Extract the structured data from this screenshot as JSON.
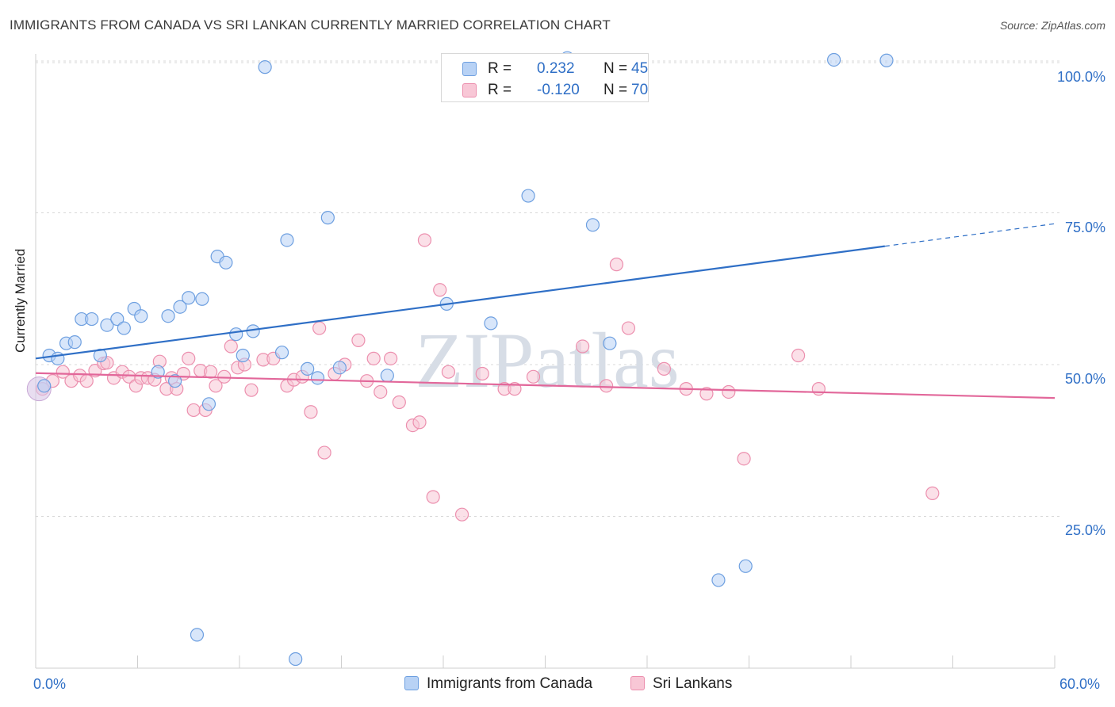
{
  "title": "IMMIGRANTS FROM CANADA VS SRI LANKAN CURRENTLY MARRIED CORRELATION CHART",
  "source": "Source: ZipAtlas.com",
  "watermark": "ZIPatlas",
  "legend": {
    "r_label": "R =",
    "n_label": "N =",
    "rows": [
      {
        "r": "0.232",
        "n": "45",
        "color": "#8fb6ea"
      },
      {
        "r": "-0.120",
        "n": "70",
        "color": "#f3a9c0"
      }
    ]
  },
  "bottom_legend": [
    "Immigrants from Canada",
    "Sri Lankans"
  ],
  "colors": {
    "blue_fill": "#b8d2f5",
    "blue_stroke": "#6d9fe0",
    "blue_line": "#2f6fc6",
    "pink_fill": "#f8c7d6",
    "pink_stroke": "#ec8fae",
    "pink_line": "#e2679a",
    "grid": "#d8d8d8",
    "tick_label": "#2f6fc6"
  },
  "chart_data": {
    "type": "scatter",
    "title": "IMMIGRANTS FROM CANADA VS SRI LANKAN CURRENTLY MARRIED CORRELATION CHART",
    "xlabel": "",
    "ylabel": "Currently Married",
    "xlim": [
      0,
      60
    ],
    "ylim": [
      0,
      103
    ],
    "x_tick_labels": [
      "0.0%",
      "60.0%"
    ],
    "y_tick_labels": [
      "25.0%",
      "50.0%",
      "75.0%",
      "100.0%"
    ],
    "y_ticks": [
      25,
      50,
      75,
      100
    ],
    "grid": true,
    "series": [
      {
        "name": "Immigrants from Canada",
        "color": "blue",
        "r": 0.232,
        "n": 45,
        "trend": {
          "x": [
            0,
            50
          ],
          "y": [
            51.0,
            69.5
          ],
          "dashed_to": [
            60,
            73.2
          ]
        },
        "points": [
          [
            0.5,
            46.5
          ],
          [
            0.8,
            51.5
          ],
          [
            1.3,
            51.0
          ],
          [
            1.8,
            53.5
          ],
          [
            2.3,
            53.7
          ],
          [
            2.7,
            57.5
          ],
          [
            3.3,
            57.5
          ],
          [
            3.8,
            51.5
          ],
          [
            4.2,
            56.5
          ],
          [
            4.8,
            57.5
          ],
          [
            5.2,
            56.0
          ],
          [
            5.8,
            59.2
          ],
          [
            6.2,
            58.0
          ],
          [
            7.2,
            48.8
          ],
          [
            7.8,
            58.0
          ],
          [
            8.2,
            47.3
          ],
          [
            8.5,
            59.5
          ],
          [
            9.0,
            61.0
          ],
          [
            9.5,
            5.5
          ],
          [
            9.8,
            60.8
          ],
          [
            10.2,
            43.5
          ],
          [
            10.7,
            67.8
          ],
          [
            11.2,
            66.8
          ],
          [
            11.8,
            55.0
          ],
          [
            12.2,
            51.5
          ],
          [
            12.8,
            55.5
          ],
          [
            13.5,
            99.0
          ],
          [
            14.5,
            52.0
          ],
          [
            14.8,
            70.5
          ],
          [
            15.3,
            1.5
          ],
          [
            16.0,
            49.3
          ],
          [
            16.6,
            47.8
          ],
          [
            17.2,
            74.2
          ],
          [
            17.9,
            49.5
          ],
          [
            20.7,
            48.2
          ],
          [
            24.2,
            60.0
          ],
          [
            26.8,
            56.8
          ],
          [
            29.0,
            77.8
          ],
          [
            31.3,
            100.5
          ],
          [
            32.8,
            73.0
          ],
          [
            33.8,
            53.5
          ],
          [
            40.2,
            14.5
          ],
          [
            41.8,
            16.8
          ],
          [
            47.0,
            100.2
          ],
          [
            50.1,
            100.1
          ]
        ]
      },
      {
        "name": "Sri Lankans",
        "color": "pink",
        "r": -0.12,
        "n": 70,
        "trend": {
          "x": [
            0,
            60
          ],
          "y": [
            48.6,
            44.5
          ]
        },
        "points": [
          [
            0.4,
            46.0
          ],
          [
            1.0,
            47.3
          ],
          [
            1.6,
            48.8
          ],
          [
            2.1,
            47.3
          ],
          [
            2.6,
            48.2
          ],
          [
            3.0,
            47.3
          ],
          [
            3.5,
            49.0
          ],
          [
            4.0,
            50.2
          ],
          [
            4.2,
            50.3
          ],
          [
            4.6,
            47.8
          ],
          [
            5.1,
            48.8
          ],
          [
            5.5,
            48.0
          ],
          [
            5.9,
            46.5
          ],
          [
            6.2,
            47.8
          ],
          [
            6.6,
            47.8
          ],
          [
            7.0,
            47.5
          ],
          [
            7.3,
            50.5
          ],
          [
            7.7,
            46.0
          ],
          [
            8.0,
            47.8
          ],
          [
            8.3,
            46.0
          ],
          [
            8.7,
            48.5
          ],
          [
            9.0,
            51.0
          ],
          [
            9.3,
            42.5
          ],
          [
            9.7,
            49.0
          ],
          [
            10.0,
            42.5
          ],
          [
            10.3,
            48.8
          ],
          [
            10.6,
            46.5
          ],
          [
            11.1,
            48.0
          ],
          [
            11.5,
            53.0
          ],
          [
            11.9,
            49.5
          ],
          [
            12.3,
            50.0
          ],
          [
            12.7,
            45.8
          ],
          [
            13.4,
            50.8
          ],
          [
            14.0,
            51.0
          ],
          [
            14.8,
            46.5
          ],
          [
            15.2,
            47.5
          ],
          [
            15.7,
            48.0
          ],
          [
            16.2,
            42.2
          ],
          [
            16.7,
            56.0
          ],
          [
            17.0,
            35.5
          ],
          [
            17.6,
            48.5
          ],
          [
            18.2,
            50.0
          ],
          [
            19.0,
            54.0
          ],
          [
            19.5,
            47.3
          ],
          [
            19.9,
            51.0
          ],
          [
            20.3,
            45.5
          ],
          [
            20.9,
            51.0
          ],
          [
            21.4,
            43.8
          ],
          [
            22.2,
            40.0
          ],
          [
            22.6,
            40.5
          ],
          [
            22.9,
            70.5
          ],
          [
            23.4,
            28.2
          ],
          [
            23.8,
            62.3
          ],
          [
            24.3,
            48.8
          ],
          [
            25.1,
            25.3
          ],
          [
            26.3,
            48.5
          ],
          [
            27.6,
            46.0
          ],
          [
            28.2,
            46.0
          ],
          [
            29.3,
            48.0
          ],
          [
            32.2,
            53.0
          ],
          [
            33.6,
            46.5
          ],
          [
            34.2,
            66.5
          ],
          [
            34.9,
            56.0
          ],
          [
            37.0,
            49.3
          ],
          [
            38.3,
            46.0
          ],
          [
            39.5,
            45.2
          ],
          [
            40.8,
            45.5
          ],
          [
            41.7,
            34.5
          ],
          [
            44.9,
            51.5
          ],
          [
            46.1,
            46.0
          ]
        ]
      }
    ],
    "extra_pink_points": [
      [
        52.8,
        28.8
      ]
    ]
  }
}
